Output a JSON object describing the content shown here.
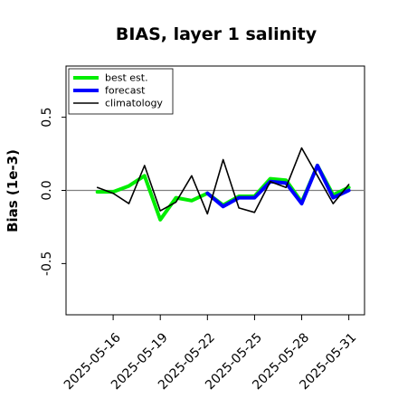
{
  "chart_data": {
    "type": "line",
    "title": "BIAS, layer 1 salinity",
    "ylabel": "Bias (1e-3)",
    "xlabel": "",
    "ylim": [
      -0.85,
      0.85
    ],
    "xlim": [
      "2025-05-13",
      "2025-06-01"
    ],
    "yticks": [
      -0.5,
      0.0,
      0.5
    ],
    "ytick_labels": [
      "-0.5",
      "0.0",
      "0.5"
    ],
    "xticks": [
      "2025-05-16",
      "2025-05-19",
      "2025-05-22",
      "2025-05-25",
      "2025-05-28",
      "2025-05-31"
    ],
    "xtick_labels": [
      "2025-05-16",
      "2025-05-19",
      "2025-05-22",
      "2025-05-25",
      "2025-05-28",
      "2025-05-31"
    ],
    "xtick_colors": [
      "#000000",
      "#000000",
      "#2e8b2e",
      "#000000",
      "#000000",
      "#000000"
    ],
    "zero_line": true,
    "grid": false,
    "legend_position": "top-left",
    "series": [
      {
        "name": "best est.",
        "color": "#00ee00",
        "x": [
          "2025-05-15",
          "2025-05-16",
          "2025-05-17",
          "2025-05-18",
          "2025-05-19",
          "2025-05-20",
          "2025-05-21",
          "2025-05-22",
          "2025-05-23",
          "2025-05-24",
          "2025-05-25",
          "2025-05-26",
          "2025-05-27",
          "2025-05-28",
          "2025-05-29",
          "2025-05-30",
          "2025-05-31"
        ],
        "values": [
          -0.01,
          -0.01,
          0.03,
          0.1,
          -0.2,
          -0.05,
          -0.07,
          -0.02,
          -0.1,
          -0.04,
          -0.04,
          0.08,
          0.07,
          -0.08,
          0.17,
          -0.03,
          0.02
        ]
      },
      {
        "name": "forecast",
        "color": "#0000ff",
        "x": [
          "2025-05-22",
          "2025-05-23",
          "2025-05-24",
          "2025-05-25",
          "2025-05-26",
          "2025-05-27",
          "2025-05-28",
          "2025-05-29",
          "2025-05-30",
          "2025-05-31"
        ],
        "values": [
          -0.02,
          -0.11,
          -0.05,
          -0.05,
          0.06,
          0.05,
          -0.09,
          0.17,
          -0.05,
          0.0
        ]
      },
      {
        "name": "climatology",
        "color": "#000000",
        "x": [
          "2025-05-15",
          "2025-05-16",
          "2025-05-17",
          "2025-05-18",
          "2025-05-19",
          "2025-05-20",
          "2025-05-21",
          "2025-05-22",
          "2025-05-23",
          "2025-05-24",
          "2025-05-25",
          "2025-05-26",
          "2025-05-27",
          "2025-05-28",
          "2025-05-29",
          "2025-05-30",
          "2025-05-31"
        ],
        "values": [
          0.02,
          -0.02,
          -0.09,
          0.17,
          -0.14,
          -0.08,
          0.1,
          -0.16,
          0.21,
          -0.12,
          -0.15,
          0.06,
          0.02,
          0.29,
          0.1,
          -0.09,
          0.04
        ]
      }
    ]
  }
}
